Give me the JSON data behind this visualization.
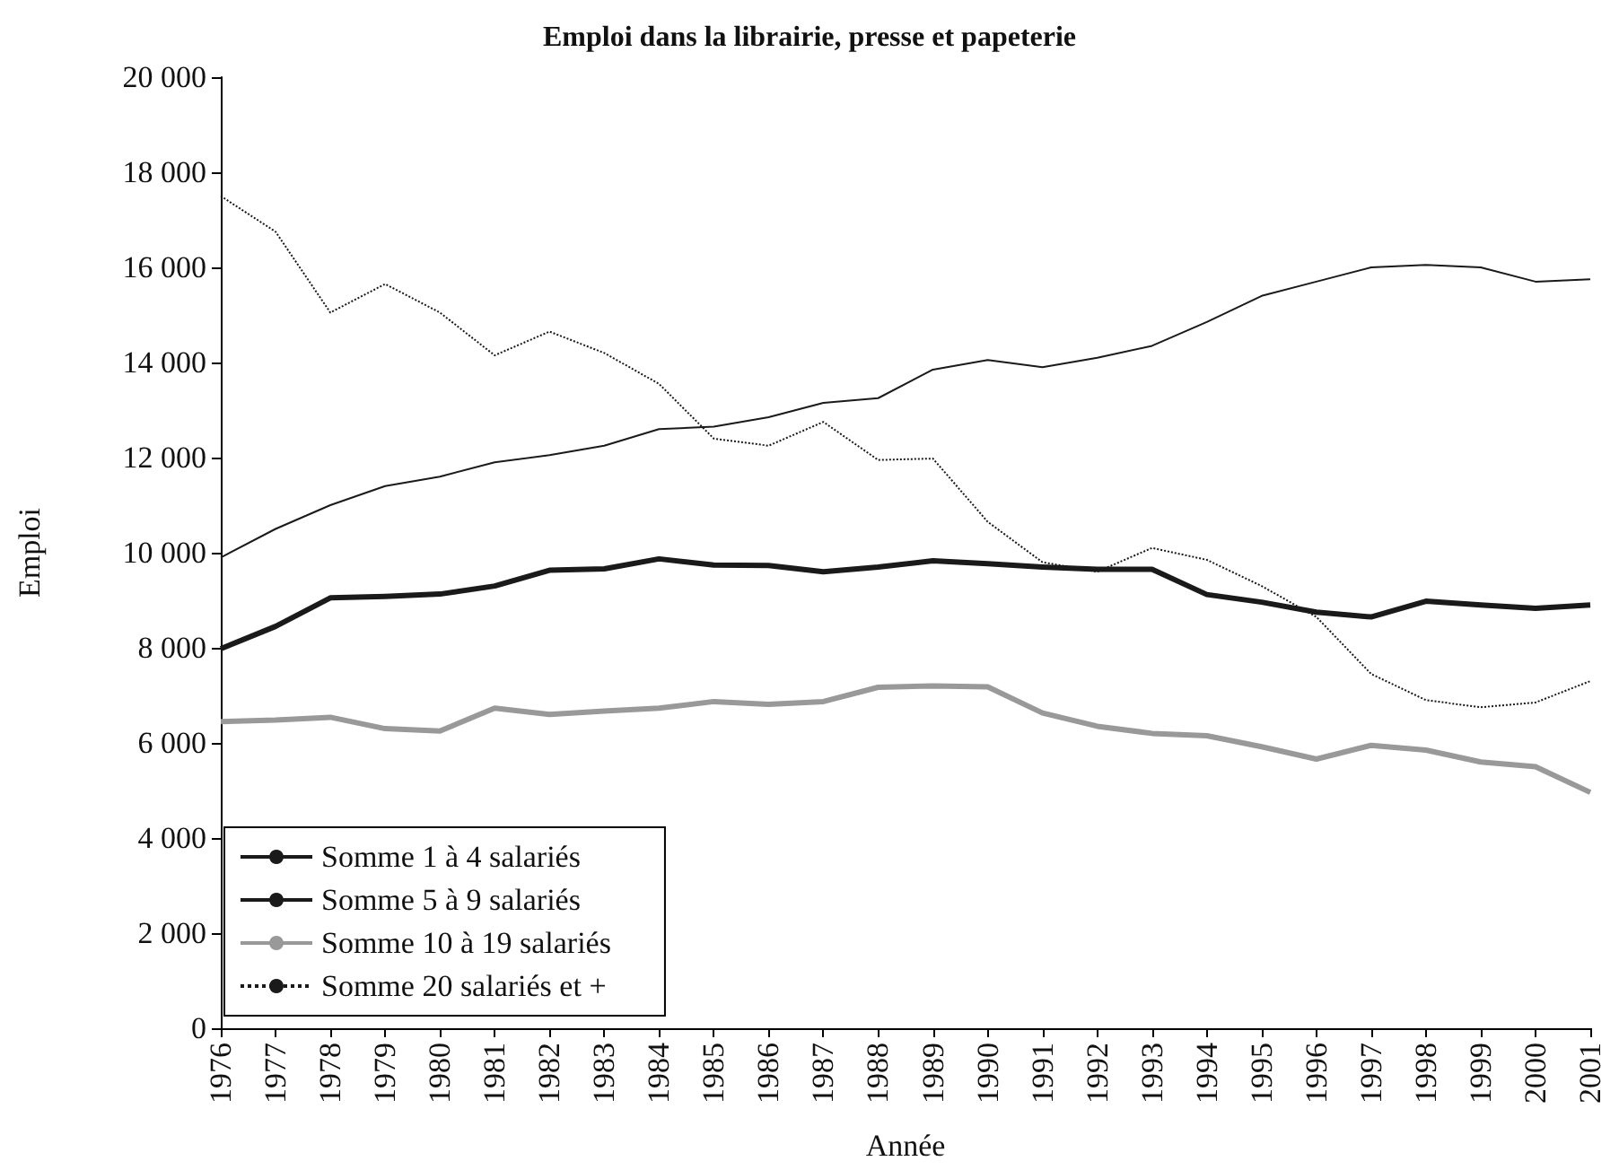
{
  "chart_data": {
    "type": "line",
    "title": "Emploi dans la librairie, presse et papeterie",
    "xlabel": "Année",
    "ylabel": "Emploi",
    "categories": [
      "1976",
      "1977",
      "1978",
      "1979",
      "1980",
      "1981",
      "1982",
      "1983",
      "1984",
      "1985",
      "1986",
      "1987",
      "1988",
      "1989",
      "1990",
      "1991",
      "1992",
      "1993",
      "1994",
      "1995",
      "1996",
      "1997",
      "1998",
      "1999",
      "2000",
      "2001"
    ],
    "series": [
      {
        "name": "Somme 1 à 4 salariés",
        "color": "#1a1a1a",
        "line_style": "solid",
        "values": [
          9900,
          10500,
          11000,
          11400,
          11600,
          11900,
          12050,
          12250,
          12600,
          12650,
          12850,
          13150,
          13250,
          13850,
          14050,
          13900,
          14100,
          14350,
          14850,
          15400,
          15700,
          16000,
          16050,
          16000,
          15700,
          15750
        ]
      },
      {
        "name": "Somme 5 à 9 salariés",
        "color": "#1a1a1a",
        "line_style": "solid",
        "values": [
          7980,
          8450,
          9050,
          9080,
          9130,
          9300,
          9630,
          9660,
          9870,
          9740,
          9730,
          9600,
          9700,
          9830,
          9770,
          9700,
          9650,
          9650,
          9120,
          8960,
          8750,
          8650,
          8980,
          8900,
          8830,
          8900
        ]
      },
      {
        "name": "Somme 10 à 19 salariés",
        "color": "#999999",
        "line_style": "solid",
        "values": [
          6450,
          6480,
          6540,
          6300,
          6250,
          6730,
          6600,
          6670,
          6730,
          6870,
          6810,
          6870,
          7170,
          7200,
          7180,
          6630,
          6350,
          6200,
          6150,
          5920,
          5660,
          5950,
          5850,
          5600,
          5500,
          4960
        ]
      },
      {
        "name": "Somme 20 salariés et +",
        "color": "#1a1a1a",
        "line_style": "dotted",
        "values": [
          17500,
          16750,
          15050,
          15650,
          15050,
          14150,
          14650,
          14200,
          13550,
          12400,
          12250,
          12750,
          11950,
          11980,
          10650,
          9800,
          9600,
          10100,
          9850,
          9300,
          8650,
          7450,
          6900,
          6750,
          6850,
          7300
        ]
      }
    ],
    "ylim": [
      0,
      20000
    ],
    "yticks": [
      0,
      {
        "value": 2000,
        "label": "2 000"
      },
      {
        "value": 4000,
        "label": "4 000"
      },
      {
        "value": 6000,
        "label": "6 000"
      },
      {
        "value": 8000,
        "label": "8 000"
      },
      {
        "value": 10000,
        "label": "10 000"
      },
      {
        "value": 12000,
        "label": "12 000"
      },
      {
        "value": 14000,
        "label": "14 000"
      },
      {
        "value": 16000,
        "label": "16 000"
      },
      {
        "value": 18000,
        "label": "18 000"
      },
      {
        "value": 20000,
        "label": "20 000"
      }
    ],
    "grid": false,
    "legend": "bottom left",
    "marker": "none"
  }
}
